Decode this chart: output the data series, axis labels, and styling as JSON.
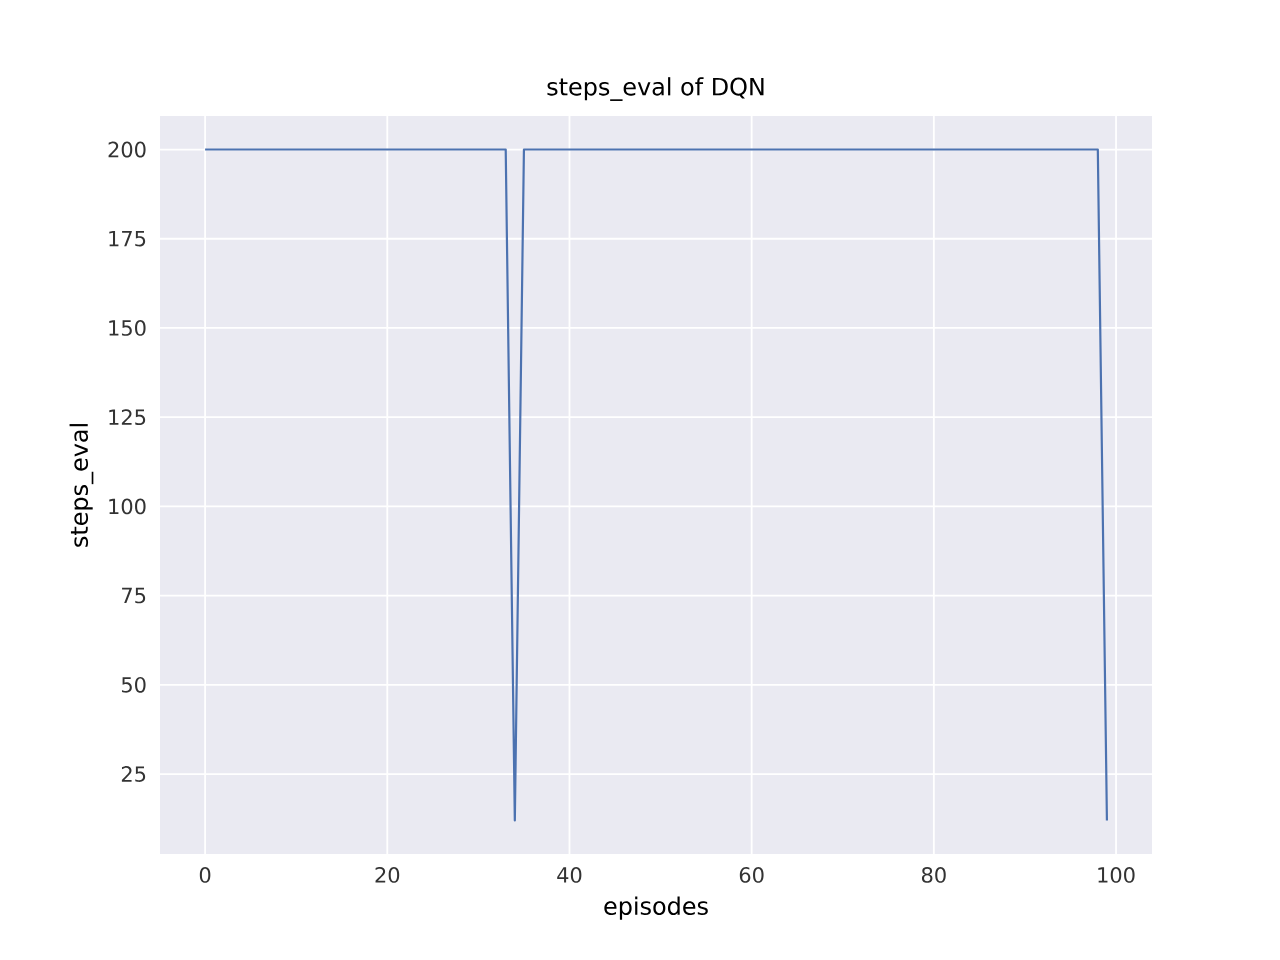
{
  "chart_data": {
    "type": "line",
    "title": "steps_eval of DQN",
    "xlabel": "episodes",
    "ylabel": "steps_eval",
    "x": [
      0,
      33,
      34,
      35,
      98,
      99
    ],
    "series": [
      {
        "color": "#4c72b0",
        "values": [
          200,
          200,
          12,
          200,
          200,
          12
        ]
      }
    ],
    "xlim": [
      -4.95,
      103.95
    ],
    "ylim": [
      2.6,
      209.4
    ],
    "xticks": [
      0,
      20,
      40,
      60,
      80,
      100
    ],
    "yticks": [
      25,
      50,
      75,
      100,
      125,
      150,
      175,
      200
    ],
    "grid": true,
    "marker": "none",
    "line_style": "solid"
  }
}
